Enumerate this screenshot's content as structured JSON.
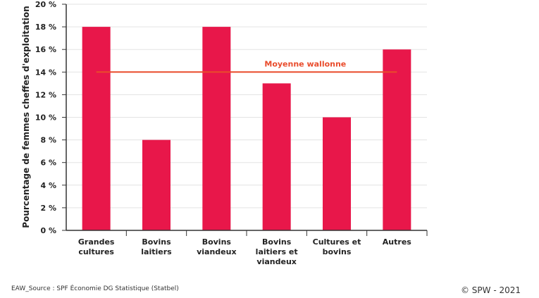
{
  "chart_data": {
    "type": "bar",
    "title": "",
    "xlabel": "",
    "ylabel": "Pourcentage de femmes cheffes d'exploitation",
    "categories": [
      [
        "Grandes",
        "cultures"
      ],
      [
        "Bovins",
        "laitiers"
      ],
      [
        "Bovins",
        "viandeux"
      ],
      [
        "Bovins",
        "laitiers et",
        "viandeux"
      ],
      [
        "Cultures et",
        "bovins"
      ],
      [
        "Autres"
      ]
    ],
    "values": [
      18,
      8,
      18,
      13,
      10,
      16
    ],
    "ylim": [
      0,
      20
    ],
    "yticks": [
      0,
      2,
      4,
      6,
      8,
      10,
      12,
      14,
      16,
      18,
      20
    ],
    "ytick_suffix": " %",
    "bar_color": "#e8174a",
    "reference_line": {
      "label": "Moyenne wallonne",
      "value": 14,
      "color": "#e94b2b"
    },
    "grid": true
  },
  "footer": {
    "source": "EAW_Source : SPF Économie DG Statistique (Statbel)",
    "credit": "© SPW - 2021"
  }
}
